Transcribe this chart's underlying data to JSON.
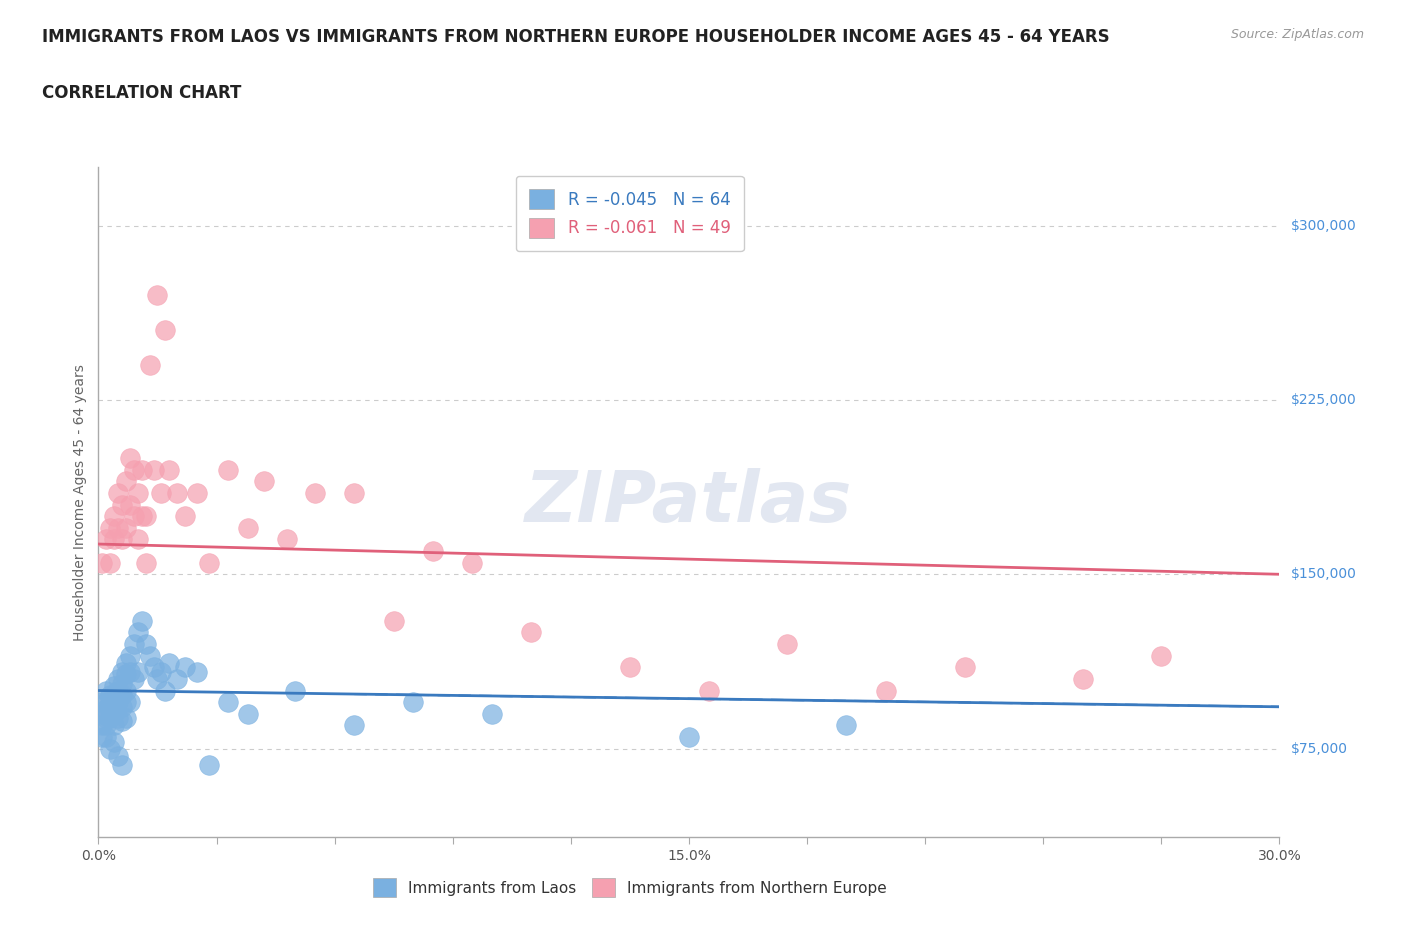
{
  "title_line1": "IMMIGRANTS FROM LAOS VS IMMIGRANTS FROM NORTHERN EUROPE HOUSEHOLDER INCOME AGES 45 - 64 YEARS",
  "title_line2": "CORRELATION CHART",
  "source_text": "Source: ZipAtlas.com",
  "ylabel": "Householder Income Ages 45 - 64 years",
  "xmin": 0.0,
  "xmax": 0.3,
  "ymin": 37000,
  "ymax": 325000,
  "yticks": [
    75000,
    150000,
    225000,
    300000
  ],
  "ytick_labels": [
    "$75,000",
    "$150,000",
    "$225,000",
    "$300,000"
  ],
  "gridline_color": "#cccccc",
  "watermark_text": "ZIPatlas",
  "laos_color": "#7ab0e0",
  "northern_europe_color": "#f5a0b0",
  "laos_line_color": "#3a7abf",
  "northern_europe_line_color": "#e0607a",
  "laos_R": -0.045,
  "laos_N": 64,
  "northern_europe_R": -0.061,
  "northern_europe_N": 49,
  "laos_scatter_x": [
    0.001,
    0.001,
    0.001,
    0.001,
    0.002,
    0.002,
    0.002,
    0.002,
    0.002,
    0.002,
    0.003,
    0.003,
    0.003,
    0.003,
    0.003,
    0.004,
    0.004,
    0.004,
    0.004,
    0.004,
    0.004,
    0.005,
    0.005,
    0.005,
    0.005,
    0.005,
    0.006,
    0.006,
    0.006,
    0.006,
    0.006,
    0.006,
    0.007,
    0.007,
    0.007,
    0.007,
    0.007,
    0.008,
    0.008,
    0.008,
    0.009,
    0.009,
    0.01,
    0.01,
    0.011,
    0.012,
    0.013,
    0.014,
    0.015,
    0.016,
    0.017,
    0.018,
    0.02,
    0.022,
    0.025,
    0.028,
    0.033,
    0.038,
    0.05,
    0.065,
    0.08,
    0.1,
    0.15,
    0.19
  ],
  "laos_scatter_y": [
    95000,
    90000,
    85000,
    80000,
    100000,
    95000,
    92000,
    88000,
    85000,
    80000,
    98000,
    95000,
    92000,
    88000,
    75000,
    102000,
    98000,
    95000,
    90000,
    85000,
    78000,
    105000,
    100000,
    95000,
    88000,
    72000,
    108000,
    103000,
    98000,
    93000,
    87000,
    68000,
    112000,
    107000,
    100000,
    95000,
    88000,
    115000,
    108000,
    95000,
    120000,
    105000,
    125000,
    108000,
    130000,
    120000,
    115000,
    110000,
    105000,
    108000,
    100000,
    112000,
    105000,
    110000,
    108000,
    68000,
    95000,
    90000,
    100000,
    85000,
    95000,
    90000,
    80000,
    85000
  ],
  "northern_europe_scatter_x": [
    0.001,
    0.002,
    0.003,
    0.003,
    0.004,
    0.004,
    0.005,
    0.005,
    0.006,
    0.006,
    0.007,
    0.007,
    0.008,
    0.008,
    0.009,
    0.009,
    0.01,
    0.01,
    0.011,
    0.011,
    0.012,
    0.012,
    0.013,
    0.014,
    0.015,
    0.016,
    0.017,
    0.018,
    0.02,
    0.022,
    0.025,
    0.028,
    0.033,
    0.038,
    0.042,
    0.048,
    0.055,
    0.065,
    0.075,
    0.085,
    0.095,
    0.11,
    0.135,
    0.155,
    0.175,
    0.2,
    0.22,
    0.25,
    0.27
  ],
  "northern_europe_scatter_y": [
    155000,
    165000,
    170000,
    155000,
    175000,
    165000,
    185000,
    170000,
    180000,
    165000,
    190000,
    170000,
    200000,
    180000,
    195000,
    175000,
    185000,
    165000,
    195000,
    175000,
    175000,
    155000,
    240000,
    195000,
    270000,
    185000,
    255000,
    195000,
    185000,
    175000,
    185000,
    155000,
    195000,
    170000,
    190000,
    165000,
    185000,
    185000,
    130000,
    160000,
    155000,
    125000,
    110000,
    100000,
    120000,
    100000,
    110000,
    105000,
    115000
  ]
}
